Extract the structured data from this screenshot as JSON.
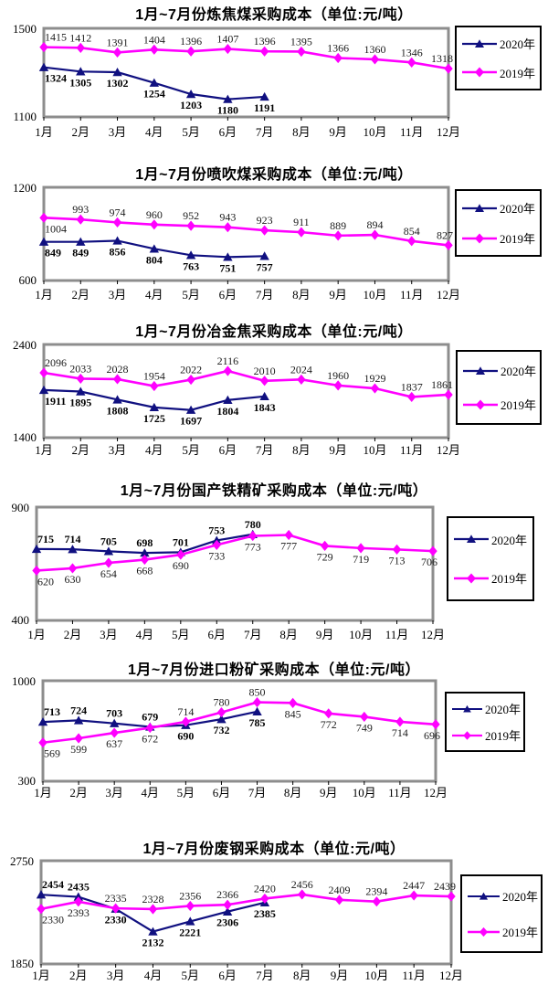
{
  "page_title": "采购成本对比图表",
  "unit_note": "单位:元/吨",
  "colors": {
    "series_2020": "#101080",
    "series_2019": "#ff00ff",
    "plot_border": "#8d8d8d",
    "legend_border": "#000000"
  },
  "chart_data": [
    {
      "type": "line",
      "title": "1月~7月份炼焦煤采购成本（单位:元/吨）",
      "categories": [
        "1月",
        "2月",
        "3月",
        "4月",
        "5月",
        "6月",
        "7月",
        "8月",
        "9月",
        "10月",
        "11月",
        "12月"
      ],
      "ylim": [
        1100,
        1500
      ],
      "grid": false,
      "legend_position": "right",
      "series": [
        {
          "name": "2020年",
          "color": "#101080",
          "marker": "triangle",
          "label_style": "bold",
          "values": [
            1324,
            1305,
            1302,
            1254,
            1203,
            1180,
            1191
          ],
          "label_pos": [
            "below",
            "below",
            "below",
            "below",
            "below",
            "below",
            "below"
          ]
        },
        {
          "name": "2019年",
          "color": "#ff00ff",
          "marker": "diamond",
          "label_style": "normal",
          "values": [
            1415,
            1412,
            1391,
            1404,
            1396,
            1407,
            1396,
            1395,
            1366,
            1360,
            1346,
            1318
          ],
          "label_pos": [
            "above",
            "above",
            "above",
            "above",
            "above",
            "above",
            "above",
            "above",
            "above",
            "above",
            "above",
            "above"
          ]
        }
      ]
    },
    {
      "type": "line",
      "title": "1月~7月份喷吹煤采购成本（单位:元/吨）",
      "categories": [
        "1月",
        "2月",
        "3月",
        "4月",
        "5月",
        "6月",
        "7月",
        "8月",
        "9月",
        "10月",
        "11月",
        "12月"
      ],
      "ylim": [
        600,
        1200
      ],
      "grid": false,
      "legend_position": "right",
      "series": [
        {
          "name": "2020年",
          "color": "#101080",
          "marker": "triangle",
          "label_style": "bold",
          "values": [
            849,
            849,
            856,
            804,
            763,
            751,
            757
          ],
          "label_pos": [
            "below",
            "below",
            "below",
            "below",
            "below",
            "below",
            "below"
          ]
        },
        {
          "name": "2019年",
          "color": "#ff00ff",
          "marker": "diamond",
          "label_style": "normal",
          "values": [
            1004,
            993,
            974,
            960,
            952,
            943,
            923,
            911,
            889,
            894,
            854,
            827
          ],
          "label_pos": [
            "below",
            "above",
            "above",
            "above",
            "above",
            "above",
            "above",
            "above",
            "above",
            "above",
            "above",
            "above"
          ]
        }
      ]
    },
    {
      "type": "line",
      "title": "1月~7月份冶金焦采购成本（单位:元/吨）",
      "categories": [
        "1月",
        "2月",
        "3月",
        "4月",
        "5月",
        "6月",
        "7月",
        "8月",
        "9月",
        "10月",
        "11月",
        "12月"
      ],
      "ylim": [
        1400,
        2400
      ],
      "grid": false,
      "legend_position": "right",
      "series": [
        {
          "name": "2020年",
          "color": "#101080",
          "marker": "triangle",
          "label_style": "bold",
          "values": [
            1911,
            1895,
            1808,
            1725,
            1697,
            1804,
            1843
          ],
          "label_pos": [
            "below",
            "below",
            "below",
            "below",
            "below",
            "below",
            "below"
          ]
        },
        {
          "name": "2019年",
          "color": "#ff00ff",
          "marker": "diamond",
          "label_style": "normal",
          "values": [
            2096,
            2033,
            2028,
            1954,
            2022,
            2116,
            2010,
            2024,
            1960,
            1929,
            1837,
            1861
          ],
          "label_pos": [
            "above",
            "above",
            "above",
            "above",
            "above",
            "above",
            "above",
            "above",
            "above",
            "above",
            "above",
            "above"
          ]
        }
      ]
    },
    {
      "type": "line",
      "title": "1月~7月份国产铁精矿采购成本（单位:元/吨）",
      "categories": [
        "1月",
        "2月",
        "3月",
        "4月",
        "5月",
        "6月",
        "7月",
        "8月",
        "9月",
        "10月",
        "11月",
        "12月"
      ],
      "ylim": [
        400,
        900
      ],
      "grid": false,
      "legend_position": "right",
      "series": [
        {
          "name": "2020年",
          "color": "#101080",
          "marker": "triangle",
          "label_style": "bold",
          "values": [
            715,
            714,
            705,
            698,
            701,
            753,
            780
          ],
          "label_pos": [
            "above",
            "above",
            "above",
            "above",
            "above",
            "above",
            "above"
          ]
        },
        {
          "name": "2019年",
          "color": "#ff00ff",
          "marker": "diamond",
          "label_style": "normal",
          "values": [
            620,
            630,
            654,
            668,
            690,
            733,
            773,
            777,
            729,
            719,
            713,
            706
          ],
          "label_pos": [
            "below",
            "below",
            "below",
            "below",
            "below",
            "below",
            "below",
            "below",
            "below",
            "below",
            "below",
            "below"
          ]
        }
      ]
    },
    {
      "type": "line",
      "title": "1月~7月份进口粉矿采购成本（单位:元/吨）",
      "categories": [
        "1月",
        "2月",
        "3月",
        "4月",
        "5月",
        "6月",
        "7月",
        "8月",
        "9月",
        "10月",
        "11月",
        "12月"
      ],
      "ylim": [
        300,
        1000
      ],
      "grid": false,
      "legend_position": "right",
      "series": [
        {
          "name": "2020年",
          "color": "#101080",
          "marker": "triangle",
          "label_style": "bold",
          "values": [
            713,
            724,
            703,
            679,
            690,
            732,
            785
          ],
          "label_pos": [
            "above",
            "above",
            "above",
            "above",
            "below",
            "below",
            "below"
          ]
        },
        {
          "name": "2019年",
          "color": "#ff00ff",
          "marker": "diamond",
          "label_style": "normal",
          "values": [
            569,
            599,
            637,
            672,
            714,
            780,
            850,
            845,
            772,
            749,
            714,
            696
          ],
          "label_pos": [
            "below",
            "below",
            "below",
            "below",
            "above",
            "above",
            "above",
            "below",
            "below",
            "below",
            "below",
            "below"
          ]
        }
      ]
    },
    {
      "type": "line",
      "title": "1月~7月份废钢采购成本（单位:元/吨）",
      "categories": [
        "1月",
        "2月",
        "3月",
        "4月",
        "5月",
        "6月",
        "7月",
        "8月",
        "9月",
        "10月",
        "11月",
        "12月"
      ],
      "ylim": [
        1850,
        2750
      ],
      "grid": false,
      "legend_position": "right",
      "series": [
        {
          "name": "2020年",
          "color": "#101080",
          "marker": "triangle",
          "label_style": "bold",
          "values": [
            2454,
            2435,
            2330,
            2132,
            2221,
            2306,
            2385
          ],
          "label_pos": [
            "above",
            "above",
            "below",
            "below",
            "below",
            "below",
            "below"
          ]
        },
        {
          "name": "2019年",
          "color": "#ff00ff",
          "marker": "diamond",
          "label_style": "normal",
          "values": [
            2330,
            2393,
            2335,
            2328,
            2356,
            2366,
            2420,
            2456,
            2409,
            2394,
            2447,
            2439
          ],
          "label_pos": [
            "below",
            "below",
            "above",
            "above",
            "above",
            "above",
            "above",
            "above",
            "above",
            "above",
            "above",
            "above"
          ]
        }
      ]
    }
  ]
}
